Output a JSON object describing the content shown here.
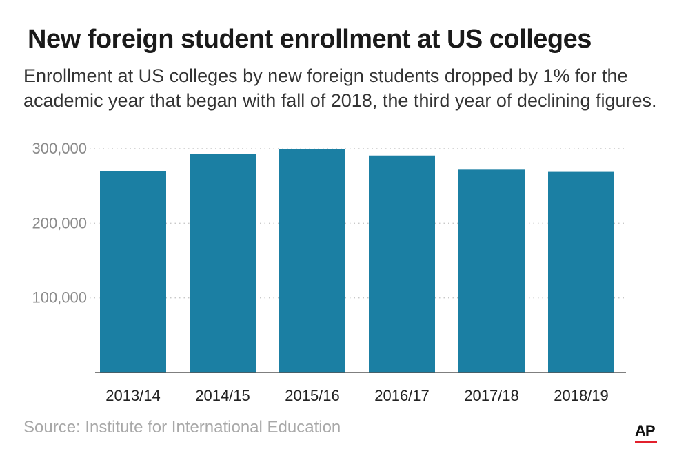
{
  "colors": {
    "bar": "#1b7fa3",
    "axis": "#555555",
    "grid": "#c8c8c8",
    "brand_underline": "#e2202c"
  },
  "footer": {
    "source": "Source: Institute for International Education",
    "logo": "AP"
  },
  "chart_data": {
    "type": "bar",
    "title": "New foreign student enrollment at US colleges",
    "subtitle": "Enrollment at US colleges by new foreign students dropped by 1% for the academic year that began with fall of 2018, the third year of declining figures.",
    "xlabel": "",
    "ylabel": "",
    "categories": [
      "2013/14",
      "2014/15",
      "2015/16",
      "2016/17",
      "2017/18",
      "2018/19"
    ],
    "values": [
      270000,
      293000,
      300000,
      291000,
      272000,
      269000
    ],
    "ylim": [
      0,
      300000
    ],
    "yticks": [
      100000,
      200000,
      300000
    ],
    "ytick_labels": [
      "100,000",
      "200,000",
      "300,000"
    ],
    "grid": "horizontal dotted",
    "legend": "none"
  }
}
